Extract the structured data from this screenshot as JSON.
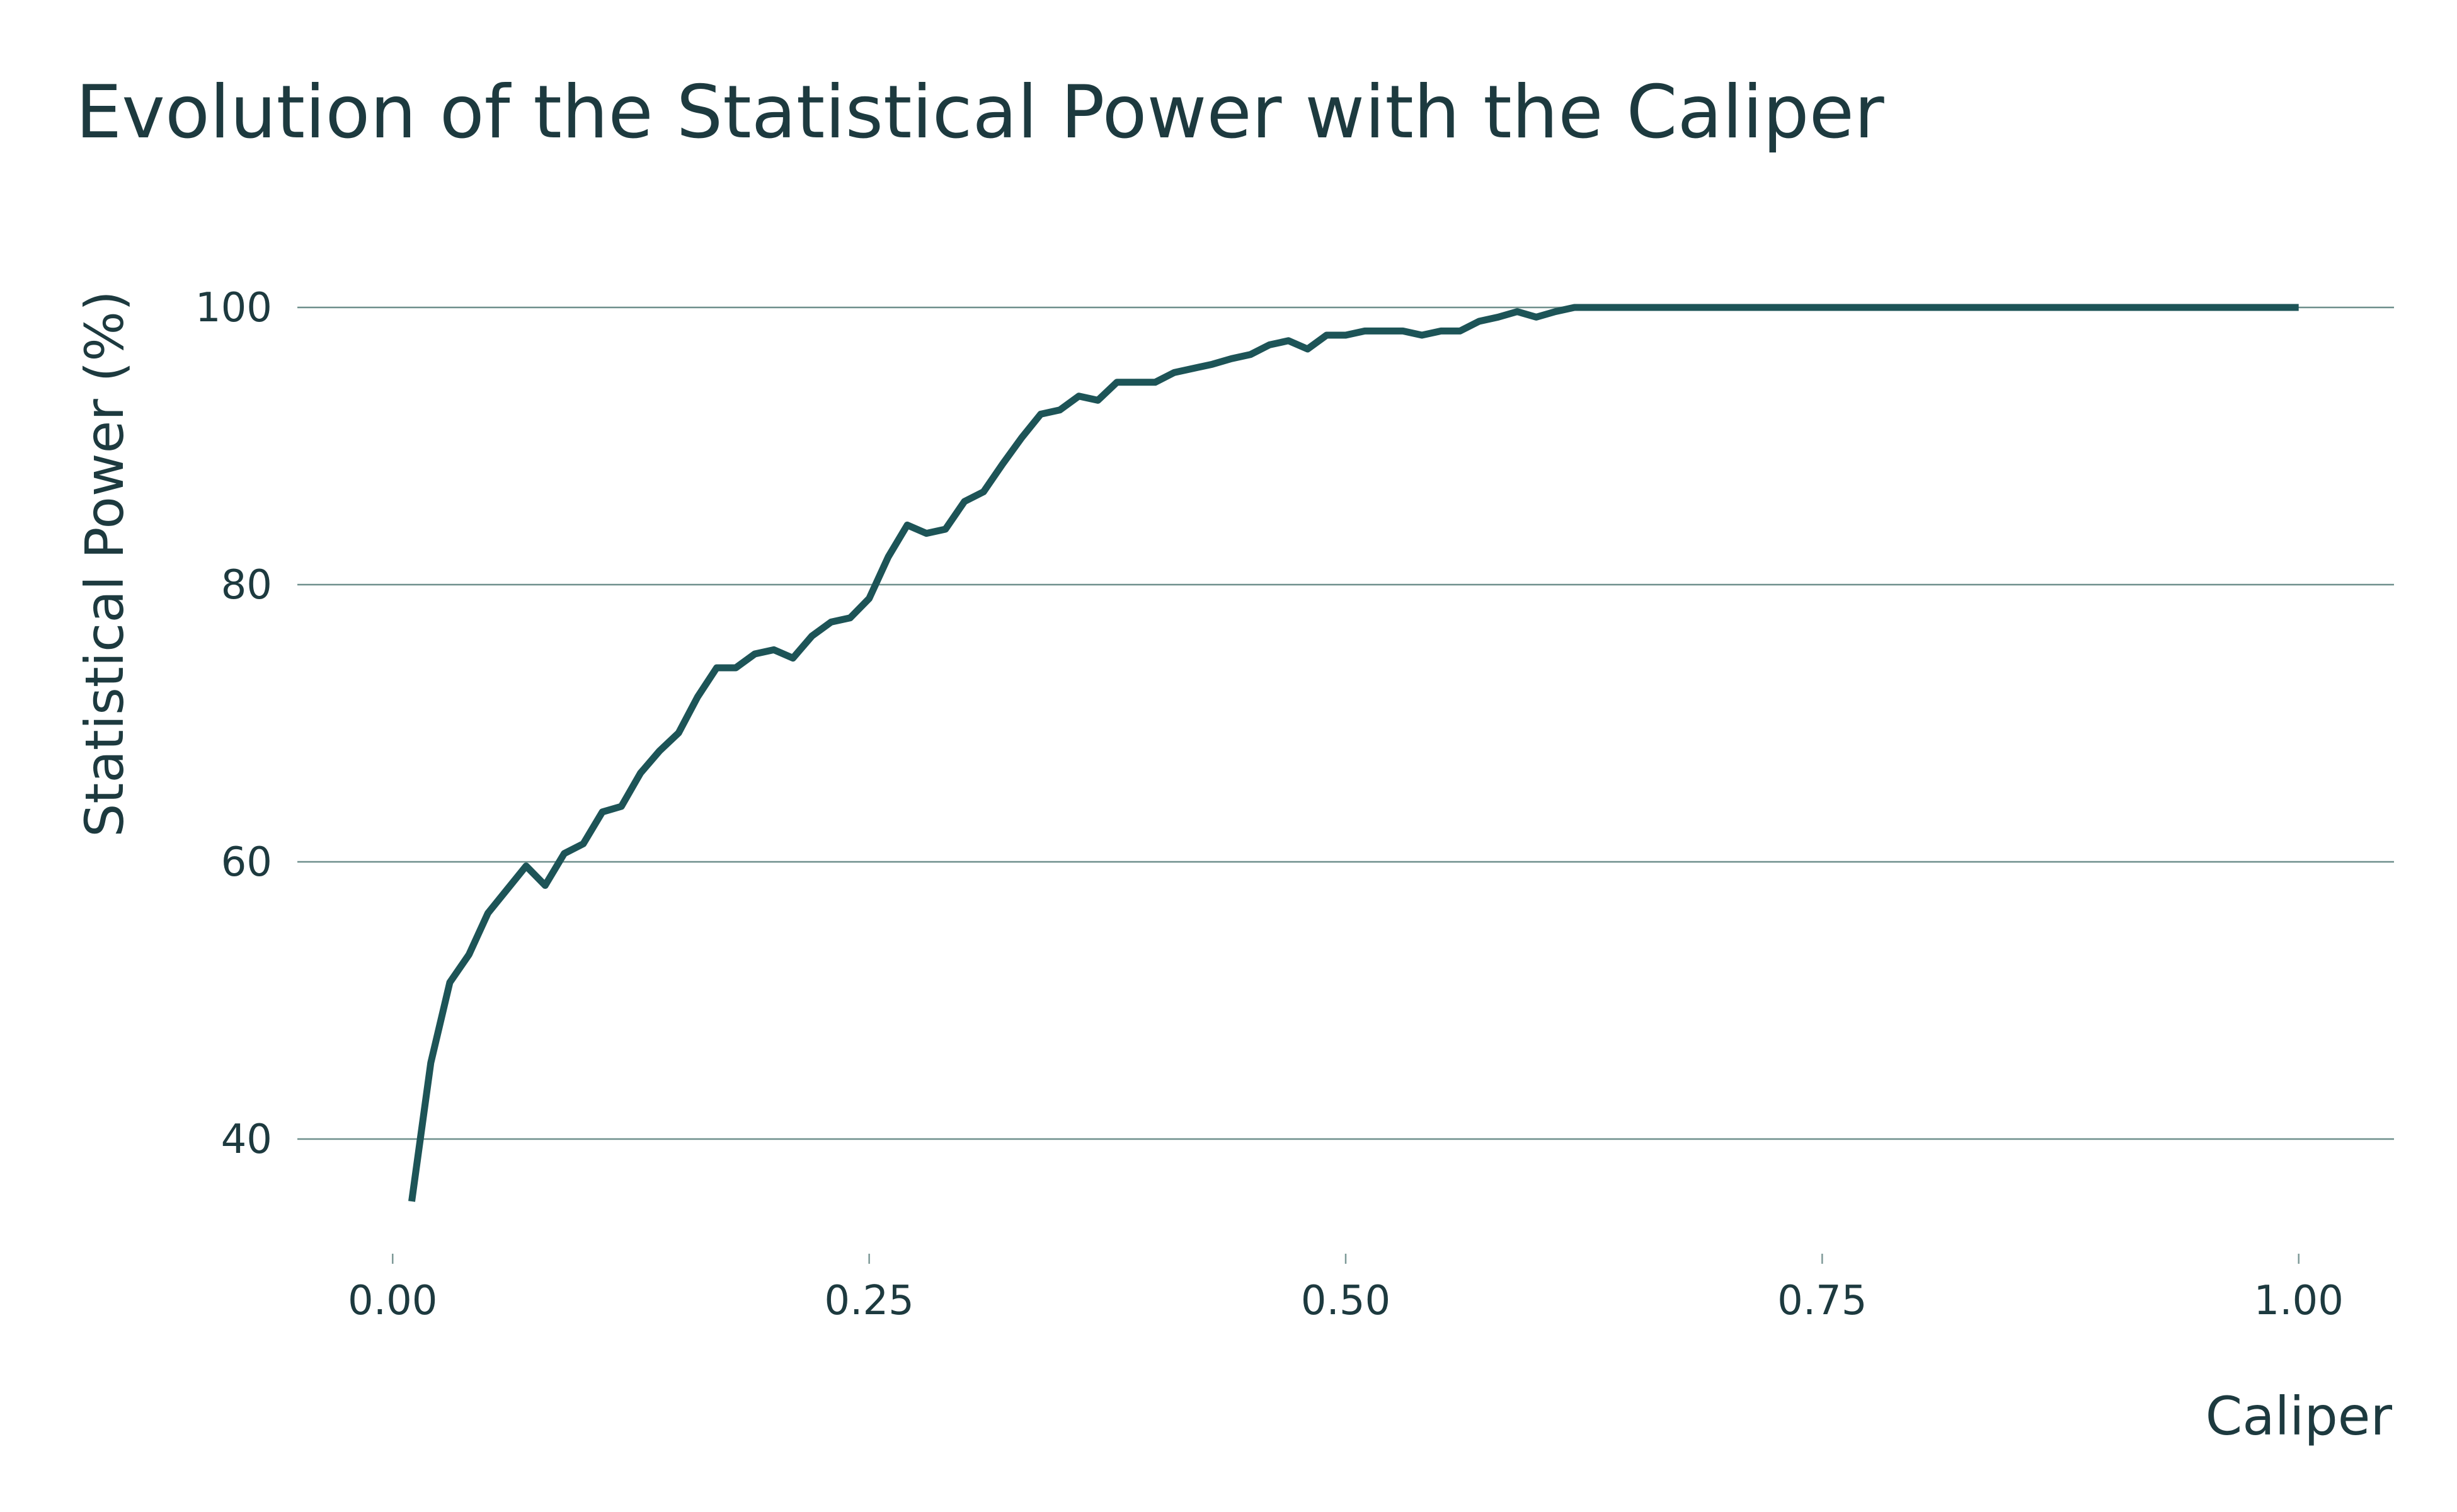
{
  "chart_data": {
    "type": "line",
    "title": "Evolution of the Statistical Power with the Caliper",
    "xlabel": "Caliper",
    "ylabel": "Statistical Power (%)",
    "xlim": [
      -0.05,
      1.05
    ],
    "ylim": [
      33,
      104
    ],
    "x_ticks": [
      0.0,
      0.25,
      0.5,
      0.75,
      1.0
    ],
    "x_tick_labels": [
      "0.00",
      "0.25",
      "0.50",
      "0.75",
      "1.00"
    ],
    "y_ticks": [
      40,
      60,
      80,
      100
    ],
    "y_tick_labels": [
      "40",
      "60",
      "80",
      "100"
    ],
    "grid": "horizontal",
    "colors": {
      "line": "#1d5457",
      "text": "#1d3a3f",
      "grid": "#6e8f8c"
    },
    "series": [
      {
        "x": [
          0.01,
          0.02,
          0.03,
          0.04,
          0.05,
          0.06,
          0.07,
          0.08,
          0.09,
          0.1,
          0.11,
          0.12,
          0.13,
          0.14,
          0.15,
          0.16,
          0.17,
          0.18,
          0.19,
          0.2,
          0.21,
          0.22,
          0.23,
          0.24,
          0.25,
          0.26,
          0.27,
          0.28,
          0.29,
          0.3,
          0.31,
          0.32,
          0.33,
          0.34,
          0.35,
          0.36,
          0.37,
          0.38,
          0.39,
          0.4,
          0.41,
          0.42,
          0.43,
          0.44,
          0.45,
          0.46,
          0.47,
          0.48,
          0.49,
          0.5,
          0.51,
          0.52,
          0.53,
          0.54,
          0.55,
          0.56,
          0.57,
          0.58,
          0.59,
          0.6,
          0.61,
          0.62,
          0.63,
          0.64,
          0.65,
          0.66,
          0.67,
          0.68,
          0.69,
          0.7,
          0.71,
          0.72,
          0.73,
          0.74,
          0.75,
          0.76,
          0.77,
          0.78,
          0.79,
          0.8,
          0.81,
          0.82,
          0.83,
          0.84,
          0.85,
          0.86,
          0.87,
          0.88,
          0.89,
          0.9,
          0.91,
          0.92,
          0.93,
          0.94,
          0.95,
          0.96,
          0.97,
          0.98,
          0.99,
          1.0
        ],
        "values": [
          35.5,
          45.5,
          51.3,
          53.3,
          56.3,
          58.0,
          59.7,
          58.3,
          60.6,
          61.3,
          63.6,
          64.0,
          66.4,
          68.0,
          69.3,
          71.9,
          74.0,
          74.0,
          75.0,
          75.3,
          74.7,
          76.3,
          77.3,
          77.6,
          79.0,
          82.0,
          84.3,
          83.7,
          84.0,
          86.0,
          86.7,
          88.7,
          90.6,
          92.3,
          92.6,
          93.6,
          93.3,
          94.6,
          94.6,
          94.6,
          95.3,
          95.6,
          95.9,
          96.3,
          96.6,
          97.3,
          97.6,
          97.0,
          98.0,
          98.0,
          98.3,
          98.3,
          98.3,
          98.0,
          98.3,
          98.3,
          99.0,
          99.3,
          99.7,
          99.3,
          99.7,
          100.0,
          100.0,
          100.0,
          100.0,
          100.0,
          100.0,
          100.0,
          100.0,
          100.0,
          100.0,
          100.0,
          100.0,
          100.0,
          100.0,
          100.0,
          100.0,
          100.0,
          100.0,
          100.0,
          100.0,
          100.0,
          100.0,
          100.0,
          100.0,
          100.0,
          100.0,
          100.0,
          100.0,
          100.0,
          100.0,
          100.0,
          100.0,
          100.0,
          100.0,
          100.0,
          100.0,
          100.0,
          100.0,
          100.0
        ]
      }
    ]
  }
}
